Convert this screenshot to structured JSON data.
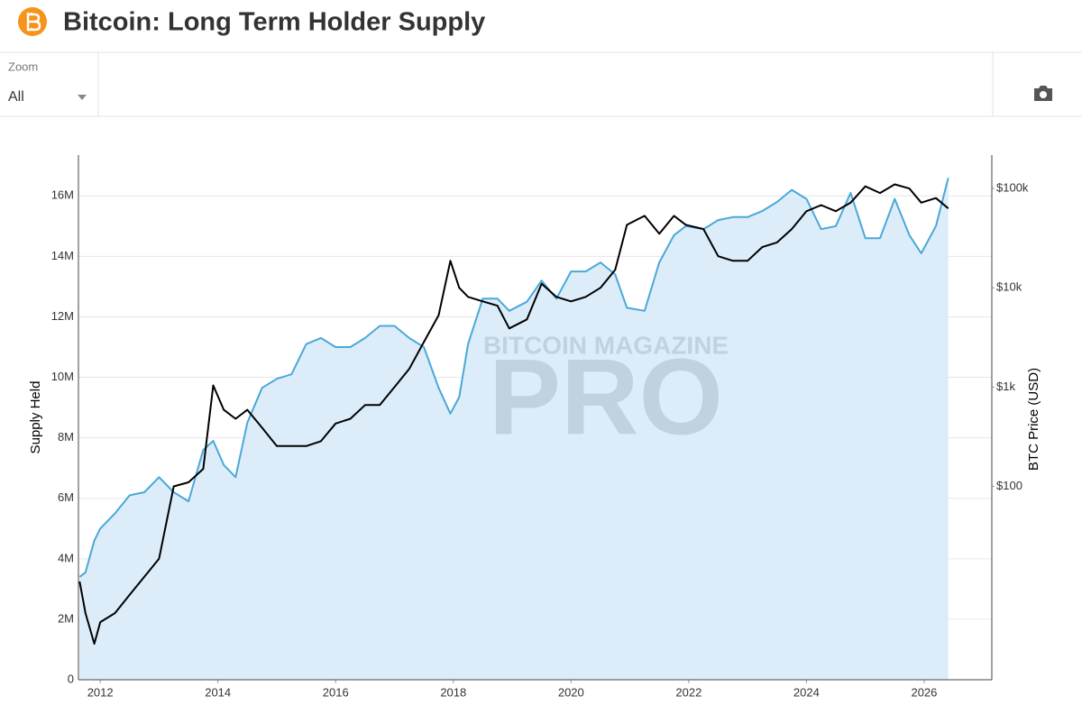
{
  "header": {
    "title": "Bitcoin: Long Term Holder Supply"
  },
  "toolbar": {
    "zoom_label": "Zoom",
    "zoom_value": "All"
  },
  "watermark": [
    "BITCOIN MAGAZINE",
    "PRO"
  ],
  "chart_data": {
    "type": "line",
    "x": [
      2011.65,
      2011.75,
      2011.9,
      2012,
      2012.25,
      2012.5,
      2012.75,
      2013,
      2013.25,
      2013.5,
      2013.75,
      2013.92,
      2014.1,
      2014.3,
      2014.5,
      2014.75,
      2015,
      2015.25,
      2015.5,
      2015.75,
      2016,
      2016.25,
      2016.5,
      2016.75,
      2017,
      2017.25,
      2017.5,
      2017.75,
      2017.95,
      2018.1,
      2018.25,
      2018.5,
      2018.75,
      2018.95,
      2019.25,
      2019.5,
      2019.75,
      2020,
      2020.25,
      2020.5,
      2020.75,
      2020.95,
      2021.25,
      2021.5,
      2021.75,
      2021.95,
      2022.25,
      2022.5,
      2022.75,
      2023,
      2023.25,
      2023.5,
      2023.75,
      2024,
      2024.25,
      2024.5,
      2024.75,
      2025,
      2025.25,
      2025.5,
      2025.75,
      2025.95,
      2026.2,
      2026.41
    ],
    "xlim": [
      2011.63,
      2027.15
    ],
    "xticks": [
      2012,
      2014,
      2016,
      2018,
      2020,
      2022,
      2024,
      2026
    ],
    "ylabel": "Supply Held",
    "ylim": [
      0,
      17350000
    ],
    "yticks": [
      0,
      {
        "value": 2000000,
        "label": "2M"
      },
      {
        "value": 4000000,
        "label": "4M"
      },
      {
        "value": 6000000,
        "label": "6M"
      },
      {
        "value": 8000000,
        "label": "8M"
      },
      {
        "value": 10000000,
        "label": "10M"
      },
      {
        "value": 12000000,
        "label": "12M"
      },
      {
        "value": 14000000,
        "label": "14M"
      },
      {
        "value": 16000000,
        "label": "16M"
      }
    ],
    "y2label": "BTC Price (USD)",
    "y2lim": [
      1.13,
      217000
    ],
    "y2log": true,
    "y2ticks": [
      {
        "value": 100,
        "label": "$100"
      },
      {
        "value": 1000,
        "label": "$1k"
      },
      {
        "value": 10000,
        "label": "$10k"
      },
      {
        "value": 100000,
        "label": "$100k"
      }
    ],
    "grid": true,
    "series": [
      {
        "color": "#4aa8d8",
        "fill": "#dcedf9",
        "area": true,
        "values": [
          3400000,
          3550000,
          4600000,
          5000000,
          5500000,
          6100000,
          6200000,
          6700000,
          6200000,
          5900000,
          7600000,
          7900000,
          7100000,
          6700000,
          8500000,
          9650000,
          9950000,
          10100000,
          11100000,
          11300000,
          11000000,
          11000000,
          11300000,
          11700000,
          11700000,
          11300000,
          11000000,
          9650000,
          8800000,
          9350000,
          11100000,
          12600000,
          12600000,
          12200000,
          12500000,
          13200000,
          12600000,
          13500000,
          13500000,
          13800000,
          13400000,
          12300000,
          12200000,
          13800000,
          14700000,
          15000000,
          14900000,
          15200000,
          15300000,
          15300000,
          15500000,
          15800000,
          16200000,
          15900000,
          14900000,
          15000000,
          16100000,
          14600000,
          14600000,
          15900000,
          14700000,
          14100000,
          15000000,
          16600000
        ]
      },
      {
        "color": "#000000",
        "axis": "y2",
        "values": [
          11,
          5.3,
          2.6,
          4.3,
          5.3,
          8.1,
          12.3,
          18.7,
          100,
          110,
          150,
          1040,
          590,
          480,
          590,
          390,
          255,
          255,
          255,
          285,
          430,
          480,
          660,
          660,
          1000,
          1520,
          2840,
          5300,
          18700,
          10000,
          8100,
          7300,
          6600,
          3900,
          4800,
          11000,
          8100,
          7300,
          8100,
          10000,
          15200,
          43000,
          53000,
          35000,
          53000,
          43000,
          39000,
          20800,
          18700,
          18700,
          25700,
          28600,
          39000,
          59000,
          68000,
          59000,
          72000,
          105000,
          90000,
          110000,
          100000,
          72000,
          80000,
          63000
        ]
      }
    ]
  }
}
